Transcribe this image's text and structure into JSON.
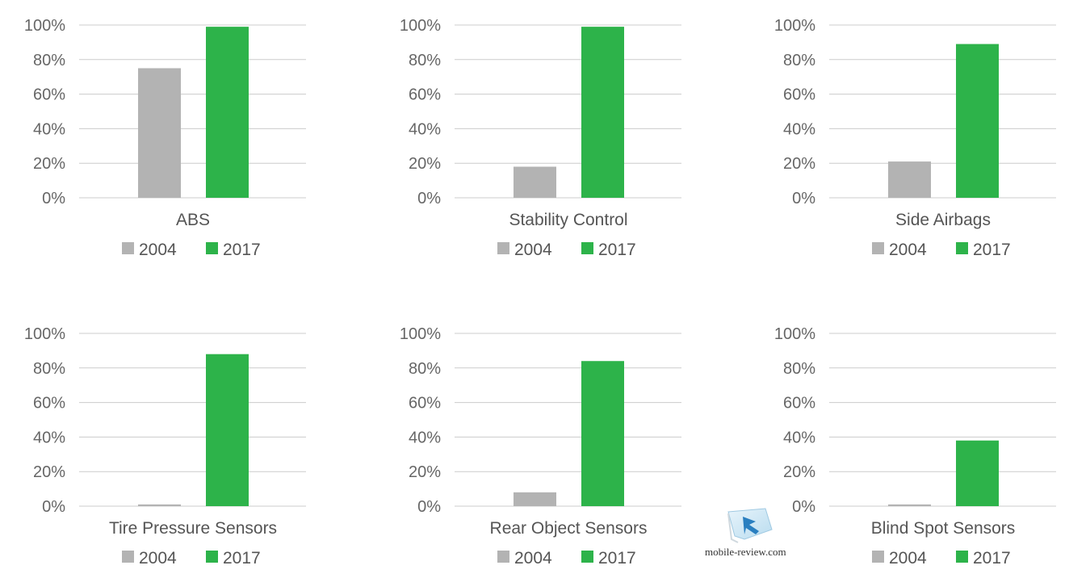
{
  "series_colors": {
    "2004": "#b3b3b3",
    "2017": "#2db34a"
  },
  "tick_labels": [
    "0%",
    "20%",
    "40%",
    "60%",
    "80%",
    "100%"
  ],
  "watermark": {
    "text": "mobile-review.com"
  },
  "chart_data": [
    {
      "type": "bar",
      "categories": [
        "ABS"
      ],
      "ylim": [
        0,
        100
      ],
      "series": [
        {
          "name": "2004",
          "values": [
            75
          ]
        },
        {
          "name": "2017",
          "values": [
            99
          ]
        }
      ]
    },
    {
      "type": "bar",
      "categories": [
        "Stability Control"
      ],
      "ylim": [
        0,
        100
      ],
      "series": [
        {
          "name": "2004",
          "values": [
            18
          ]
        },
        {
          "name": "2017",
          "values": [
            99
          ]
        }
      ]
    },
    {
      "type": "bar",
      "categories": [
        "Side Airbags"
      ],
      "ylim": [
        0,
        100
      ],
      "series": [
        {
          "name": "2004",
          "values": [
            21
          ]
        },
        {
          "name": "2017",
          "values": [
            89
          ]
        }
      ]
    },
    {
      "type": "bar",
      "categories": [
        "Tire Pressure Sensors"
      ],
      "ylim": [
        0,
        100
      ],
      "series": [
        {
          "name": "2004",
          "values": [
            1
          ]
        },
        {
          "name": "2017",
          "values": [
            88
          ]
        }
      ]
    },
    {
      "type": "bar",
      "categories": [
        "Rear Object Sensors"
      ],
      "ylim": [
        0,
        100
      ],
      "series": [
        {
          "name": "2004",
          "values": [
            8
          ]
        },
        {
          "name": "2017",
          "values": [
            84
          ]
        }
      ]
    },
    {
      "type": "bar",
      "categories": [
        "Blind Spot Sensors"
      ],
      "ylim": [
        0,
        100
      ],
      "series": [
        {
          "name": "2004",
          "values": [
            1
          ]
        },
        {
          "name": "2017",
          "values": [
            38
          ]
        }
      ]
    }
  ]
}
